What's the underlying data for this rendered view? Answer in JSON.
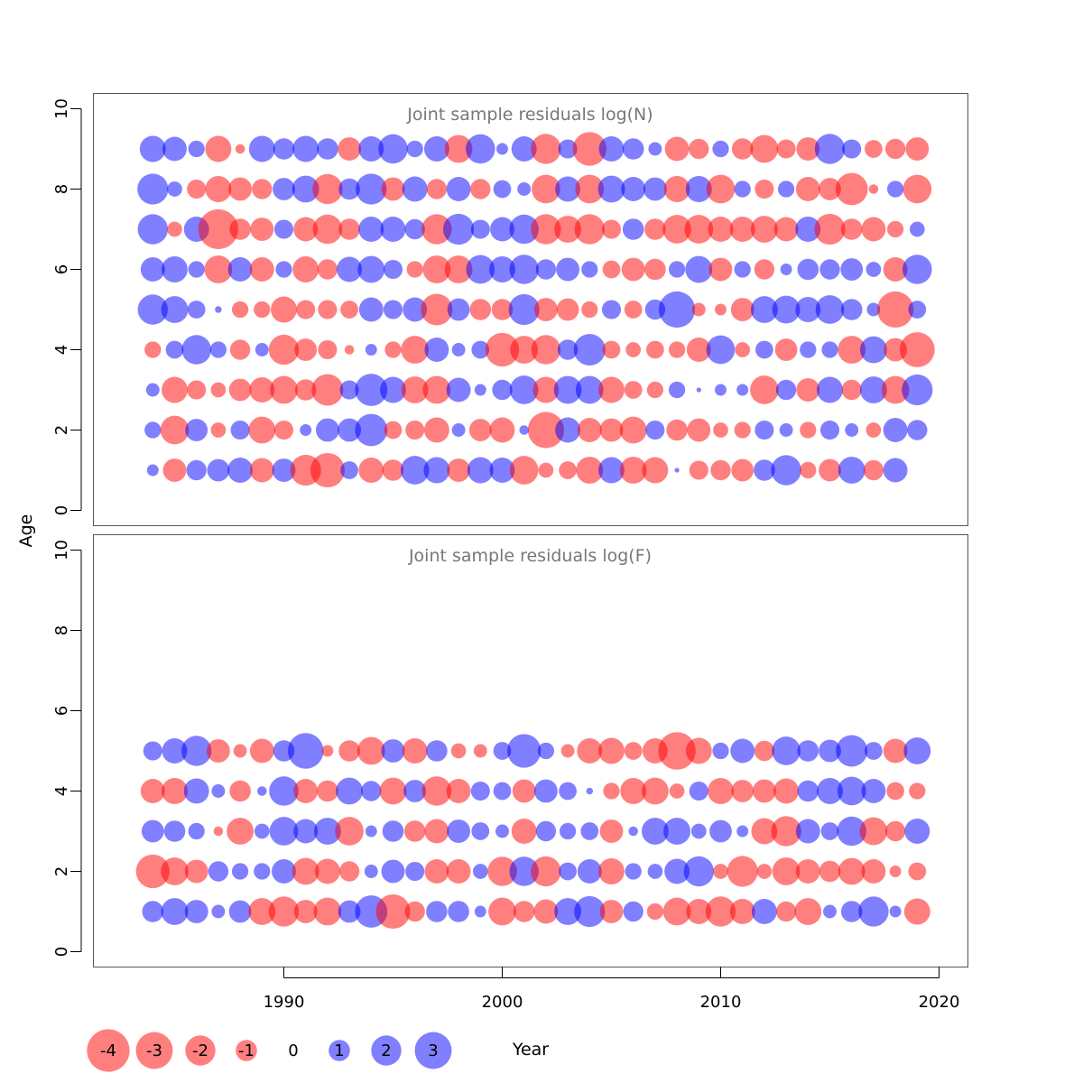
{
  "chart_data": {
    "type": "scatter",
    "subtype": "bubble",
    "x_axis_title": "Year",
    "y_axis_title": "Age",
    "xlim": [
      1981.5,
      2021.5
    ],
    "ylim": [
      0,
      10
    ],
    "x_ticks": [
      1990,
      2000,
      2010,
      2020
    ],
    "y_ticks": [
      0,
      2,
      4,
      6,
      8,
      10
    ],
    "colors": {
      "negative": "#ff0000",
      "positive": "#0000ff",
      "frame": "#555555"
    },
    "years": [
      1984,
      1985,
      1986,
      1987,
      1988,
      1989,
      1990,
      1991,
      1992,
      1993,
      1994,
      1995,
      1996,
      1997,
      1998,
      1999,
      2000,
      2001,
      2002,
      2003,
      2004,
      2005,
      2006,
      2007,
      2008,
      2009,
      2010,
      2011,
      2012,
      2013,
      2014,
      2015,
      2016,
      2017,
      2018,
      2019
    ],
    "legend": {
      "values": [
        -4,
        -3,
        -2,
        -1,
        0,
        1,
        2,
        3
      ],
      "labels": [
        "-4",
        "-3",
        "-2",
        "-1",
        "0",
        "1",
        "2",
        "3"
      ]
    },
    "panels": [
      {
        "title": "Joint sample residuals log(N)",
        "ages": [
          1,
          2,
          3,
          4,
          5,
          6,
          7,
          8,
          9
        ],
        "residuals": [
          [
            0.3,
            -1.2,
            0.9,
            1.1,
            1.4,
            -1.3,
            1.2,
            -2.1,
            -2.6,
            0.7,
            -1.4,
            -1.0,
            1.8,
            1.5,
            -1.2,
            1.5,
            1.4,
            -1.8,
            -0.5,
            -0.7,
            -1.6,
            1.5,
            -1.6,
            -1.5,
            0.05,
            -0.8,
            -0.9,
            -1.1,
            1.0,
            2.0,
            -0.6,
            -1.1,
            1.6,
            -0.9,
            1.3,
            0.0
          ],
          [
            0.6,
            -1.8,
            1.1,
            -0.5,
            0.8,
            -1.6,
            -0.8,
            0.3,
            1.2,
            1.2,
            2.3,
            -0.7,
            -0.8,
            -1.4,
            0.4,
            -1.1,
            -1.4,
            0.2,
            -2.9,
            1.4,
            -1.3,
            -1.2,
            -1.6,
            0.8,
            -1.0,
            -1.2,
            -0.5,
            -0.6,
            0.8,
            0.4,
            -0.6,
            0.8,
            0.4,
            -0.5,
            1.3,
            0.9
          ],
          [
            0.4,
            -1.5,
            -0.8,
            -0.5,
            -1.1,
            -1.4,
            -1.7,
            -1.0,
            -2.2,
            0.8,
            2.3,
            1.5,
            -1.6,
            -1.7,
            1.3,
            0.3,
            0.9,
            1.8,
            -1.5,
            1.7,
            1.7,
            -1.5,
            -0.7,
            -0.6,
            0.6,
            0.05,
            0.3,
            0.3,
            -1.8,
            0.9,
            -1.2,
            1.5,
            -0.9,
            1.6,
            -1.7,
            2.1
          ],
          [
            -0.6,
            0.7,
            1.9,
            0.6,
            -0.9,
            0.4,
            -2.0,
            -1.1,
            -0.8,
            -0.2,
            0.3,
            -0.6,
            -1.7,
            1.3,
            0.4,
            0.7,
            -2.5,
            -1.7,
            -1.9,
            0.9,
            2.2,
            -0.7,
            -0.5,
            -0.7,
            -0.6,
            -1.3,
            1.8,
            -0.5,
            0.7,
            -1.1,
            0.6,
            0.6,
            -1.7,
            1.6,
            -1.2,
            -2.7
          ],
          [
            2.0,
            1.6,
            0.7,
            0.1,
            -0.6,
            -0.6,
            -1.5,
            -0.8,
            -0.8,
            -0.7,
            1.3,
            0.8,
            1.3,
            -2.2,
            1.1,
            -1.0,
            -1.0,
            2.1,
            -1.2,
            -1.1,
            -0.6,
            0.8,
            -0.7,
            0.9,
            2.9,
            -0.4,
            -0.3,
            -1.2,
            1.6,
            1.7,
            1.4,
            1.8,
            1.0,
            0.4,
            -2.9,
            0.7
          ],
          [
            1.3,
            1.5,
            0.6,
            -1.7,
            1.3,
            -1.3,
            0.6,
            -1.5,
            -0.9,
            1.4,
            1.6,
            0.8,
            -0.6,
            -1.7,
            -1.7,
            1.8,
            1.5,
            1.9,
            0.9,
            1.2,
            0.6,
            -0.7,
            -1.2,
            -1.0,
            0.6,
            1.6,
            -1.2,
            0.6,
            -0.9,
            0.3,
            1.0,
            0.9,
            1.1,
            0.5,
            -1.3,
            1.9
          ],
          [
            2.0,
            -0.5,
            1.4,
            -3.5,
            -1.0,
            -1.2,
            0.8,
            -1.3,
            -1.9,
            -1.0,
            1.4,
            1.4,
            0.9,
            -2.0,
            2.1,
            0.8,
            1.3,
            1.9,
            -2.0,
            -1.6,
            -2.0,
            -0.8,
            1.0,
            -1.0,
            -1.8,
            -1.8,
            -1.4,
            -1.4,
            -1.6,
            -1.3,
            1.4,
            -2.1,
            -1.0,
            -1.3,
            -0.6,
            0.5
          ],
          [
            2.1,
            0.5,
            -0.8,
            -1.5,
            -1.2,
            -0.9,
            1.1,
            1.6,
            -2.0,
            1.0,
            2.1,
            -1.2,
            1.4,
            -0.9,
            1.3,
            -0.9,
            0.7,
            0.4,
            -1.8,
            1.4,
            -1.8,
            1.6,
            1.3,
            1.2,
            -1.5,
            1.5,
            -1.8,
            0.6,
            -0.8,
            0.6,
            -1.3,
            -1.1,
            -2.3,
            -0.2,
            0.6,
            -1.8
          ],
          [
            1.5,
            1.3,
            0.6,
            -1.5,
            -0.2,
            1.5,
            1.0,
            1.5,
            1.0,
            -1.2,
            1.4,
            1.9,
            0.6,
            1.4,
            -1.7,
            1.9,
            0.3,
            1.4,
            -2.0,
            0.8,
            -2.5,
            1.4,
            1.0,
            0.4,
            -1.3,
            -0.9,
            0.6,
            -1.0,
            -1.7,
            -0.8,
            -1.2,
            2.0,
            0.8,
            -0.7,
            -0.9,
            -1.2
          ]
        ]
      },
      {
        "title": "Joint sample residuals log(F)",
        "ages": [
          1,
          2,
          3,
          4,
          5
        ],
        "residuals": [
          [
            1.0,
            1.6,
            1.2,
            0.4,
            1.1,
            -1.6,
            -2.0,
            -1.2,
            -1.7,
            1.1,
            2.3,
            -2.6,
            -0.9,
            1.0,
            1.0,
            0.3,
            -1.7,
            -1.0,
            -1.3,
            1.6,
            2.1,
            -1.2,
            0.9,
            -0.6,
            -1.7,
            -1.4,
            -2.0,
            -1.4,
            1.4,
            -0.9,
            -1.6,
            0.4,
            1.0,
            2.0,
            0.3,
            -1.5
          ],
          [
            -2.5,
            -1.7,
            -1.2,
            0.9,
            0.6,
            0.6,
            1.3,
            -1.6,
            -1.4,
            -0.9,
            0.4,
            1.2,
            0.8,
            -1.3,
            -1.3,
            0.5,
            -1.9,
            1.9,
            -2.0,
            0.7,
            1.3,
            -1.5,
            0.6,
            0.5,
            1.4,
            2.0,
            -0.5,
            -2.1,
            -0.5,
            -1.7,
            -1.3,
            -1.0,
            -1.6,
            -1.3,
            -0.3,
            -0.7
          ],
          [
            1.1,
            1.0,
            0.6,
            -0.2,
            -1.6,
            0.5,
            1.8,
            1.3,
            1.6,
            -1.8,
            0.3,
            1.0,
            -1.0,
            -1.3,
            1.2,
            0.7,
            0.4,
            -1.4,
            0.9,
            0.6,
            0.7,
            -1.2,
            0.2,
            1.6,
            1.6,
            0.5,
            1.1,
            0.3,
            -1.5,
            -2.0,
            1.3,
            0.7,
            1.9,
            -1.7,
            -0.9,
            1.4
          ],
          [
            -1.3,
            -1.5,
            1.4,
            0.4,
            -1.0,
            0.2,
            1.9,
            -1.3,
            -1.0,
            1.6,
            0.9,
            -1.6,
            1.1,
            -1.9,
            -1.3,
            0.8,
            0.7,
            -1.2,
            1.2,
            0.7,
            0.1,
            -0.6,
            -1.5,
            -1.6,
            -0.5,
            0.8,
            -1.5,
            -1.1,
            -1.2,
            -1.4,
            1.0,
            1.5,
            1.8,
            1.3,
            -0.7,
            -0.6
          ],
          [
            0.8,
            1.4,
            2.0,
            -1.2,
            -0.4,
            -1.3,
            1.0,
            2.8,
            -0.3,
            -1.0,
            -1.7,
            1.2,
            -1.4,
            1.0,
            -0.5,
            -0.4,
            0.7,
            2.5,
            0.6,
            -0.4,
            -1.4,
            -1.5,
            -0.7,
            -1.4,
            -3.1,
            -1.5,
            0.6,
            1.3,
            -0.9,
            1.8,
            1.0,
            1.1,
            2.2,
            0.7,
            -1.3,
            1.6
          ]
        ]
      }
    ]
  }
}
